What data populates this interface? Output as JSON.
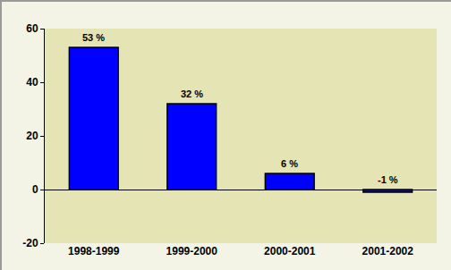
{
  "chart_data": {
    "type": "bar",
    "categories": [
      "1998-1999",
      "1999-2000",
      "2000-2001",
      "2001-2002"
    ],
    "values": [
      53,
      32,
      6,
      -1
    ],
    "value_labels": [
      "53 %",
      "32 %",
      "6 %",
      "-1 %"
    ],
    "data_labels": true,
    "color": "#0000ff",
    "ylim": [
      -20,
      60
    ],
    "yticks": [
      -20,
      0,
      20,
      40,
      60
    ],
    "grid": false
  }
}
